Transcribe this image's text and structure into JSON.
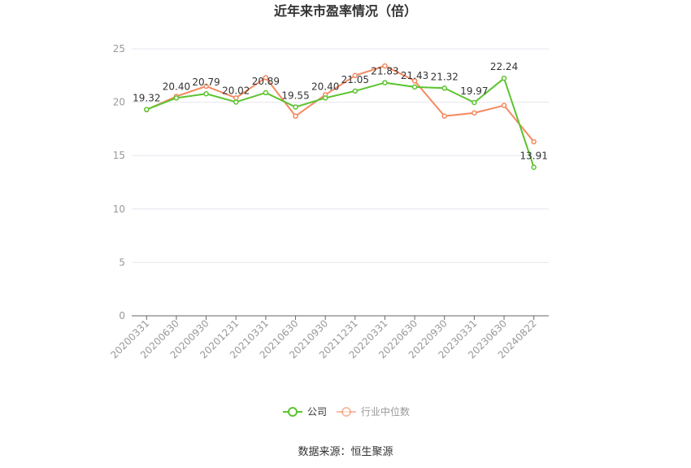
{
  "chart_data": {
    "type": "line",
    "title": "近年来市盈率情况（倍）",
    "categories": [
      "20200331",
      "20200630",
      "20200930",
      "20201231",
      "20210331",
      "20210630",
      "20210930",
      "20211231",
      "20220331",
      "20220630",
      "20220930",
      "20230331",
      "20230630",
      "20240822"
    ],
    "series": [
      {
        "name": "公司",
        "color": "#5cc42f",
        "values": [
          19.32,
          20.4,
          20.79,
          20.02,
          20.89,
          19.55,
          20.4,
          21.05,
          21.83,
          21.43,
          21.32,
          19.97,
          22.24,
          13.91
        ],
        "labels": [
          "19.32",
          "20.40",
          "20.79",
          "20.02",
          "20.89",
          "19.55",
          "20.40",
          "21.05",
          "21.83",
          "21.43",
          "21.32",
          "19.97",
          "22.24",
          "13.91"
        ]
      },
      {
        "name": "行业中位数",
        "color": "#f4895f",
        "values": [
          19.3,
          20.55,
          21.5,
          20.4,
          22.3,
          18.7,
          20.7,
          22.5,
          23.4,
          22.0,
          18.7,
          19.0,
          19.7,
          16.3
        ]
      }
    ],
    "yticks": [
      "0",
      "5",
      "10",
      "15",
      "20",
      "25"
    ],
    "ylim": [
      0,
      25
    ],
    "grid": true,
    "legend_position": "bottom"
  },
  "footer": {
    "source": "数据来源：恒生聚源"
  }
}
